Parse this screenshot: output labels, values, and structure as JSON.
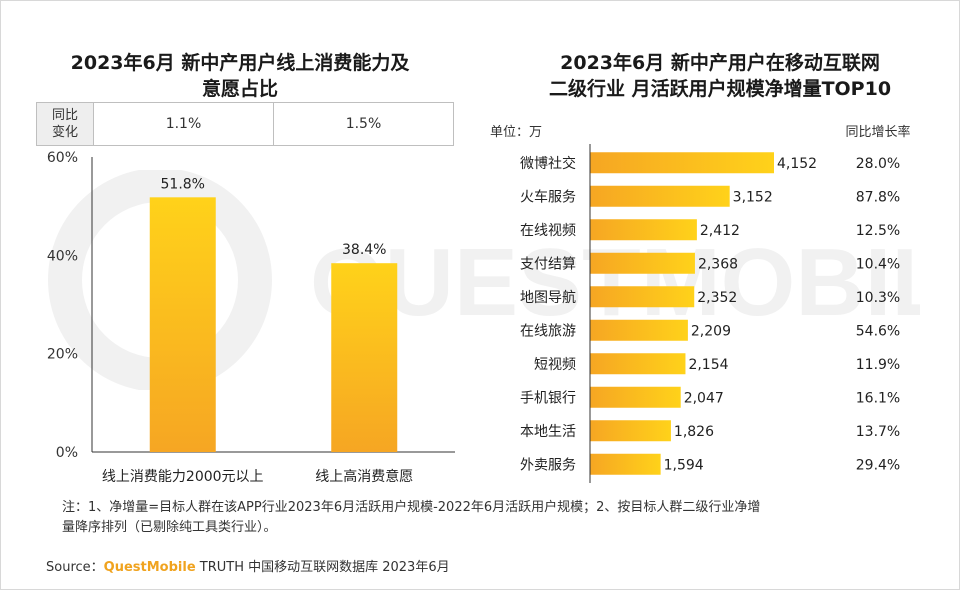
{
  "left": {
    "title_line1": "2023年6月 新中产用户线上消费能力及",
    "title_line2": "意愿占比",
    "yoy": {
      "head_line1": "同比",
      "head_line2": "变化",
      "values": [
        "1.1%",
        "1.5%"
      ]
    }
  },
  "right": {
    "title_line1": "2023年6月 新中产用户在移动互联网",
    "title_line2": "二级行业 月活跃用户规模净增量TOP10",
    "unit_label": "单位：万",
    "growth_header": "同比增长率"
  },
  "chart_data": [
    {
      "type": "bar",
      "categories": [
        "线上消费能力2000元以上",
        "线上高消费意愿"
      ],
      "values": [
        51.8,
        38.4
      ],
      "value_labels": [
        "51.8%",
        "38.4%"
      ],
      "ylim": [
        0,
        60
      ],
      "yticks": [
        "0%",
        "20%",
        "40%",
        "60%"
      ],
      "grid": false
    },
    {
      "type": "bar",
      "orientation": "horizontal",
      "categories": [
        "微博社交",
        "火车服务",
        "在线视频",
        "支付结算",
        "地图导航",
        "在线旅游",
        "短视频",
        "手机银行",
        "本地生活",
        "外卖服务"
      ],
      "values": [
        4152,
        3152,
        2412,
        2368,
        2352,
        2209,
        2154,
        2047,
        1826,
        1594
      ],
      "value_labels": [
        "4,152",
        "3,152",
        "2,412",
        "2,368",
        "2,352",
        "2,209",
        "2,154",
        "2,047",
        "1,826",
        "1,594"
      ],
      "growth": [
        "28.0%",
        "87.8%",
        "12.5%",
        "10.4%",
        "10.3%",
        "54.6%",
        "11.9%",
        "16.1%",
        "13.7%",
        "29.4%"
      ]
    }
  ],
  "colors": {
    "bar_top": "#ffd21a",
    "bar_bottom": "#f6a623",
    "axis": "#333333",
    "watermark": "#f1f1f1"
  },
  "footer": {
    "note_line1": "注：1、净增量=目标人群在该APP行业2023年6月活跃用户规模-2022年6月活跃用户规模；2、按目标人群二级行业净增",
    "note_line2": "量降序排列（已剔除纯工具类行业）。",
    "source_prefix": "Source：",
    "source_brand": "QuestMobile",
    "source_rest": " TRUTH 中国移动互联网数据库 2023年6月"
  }
}
